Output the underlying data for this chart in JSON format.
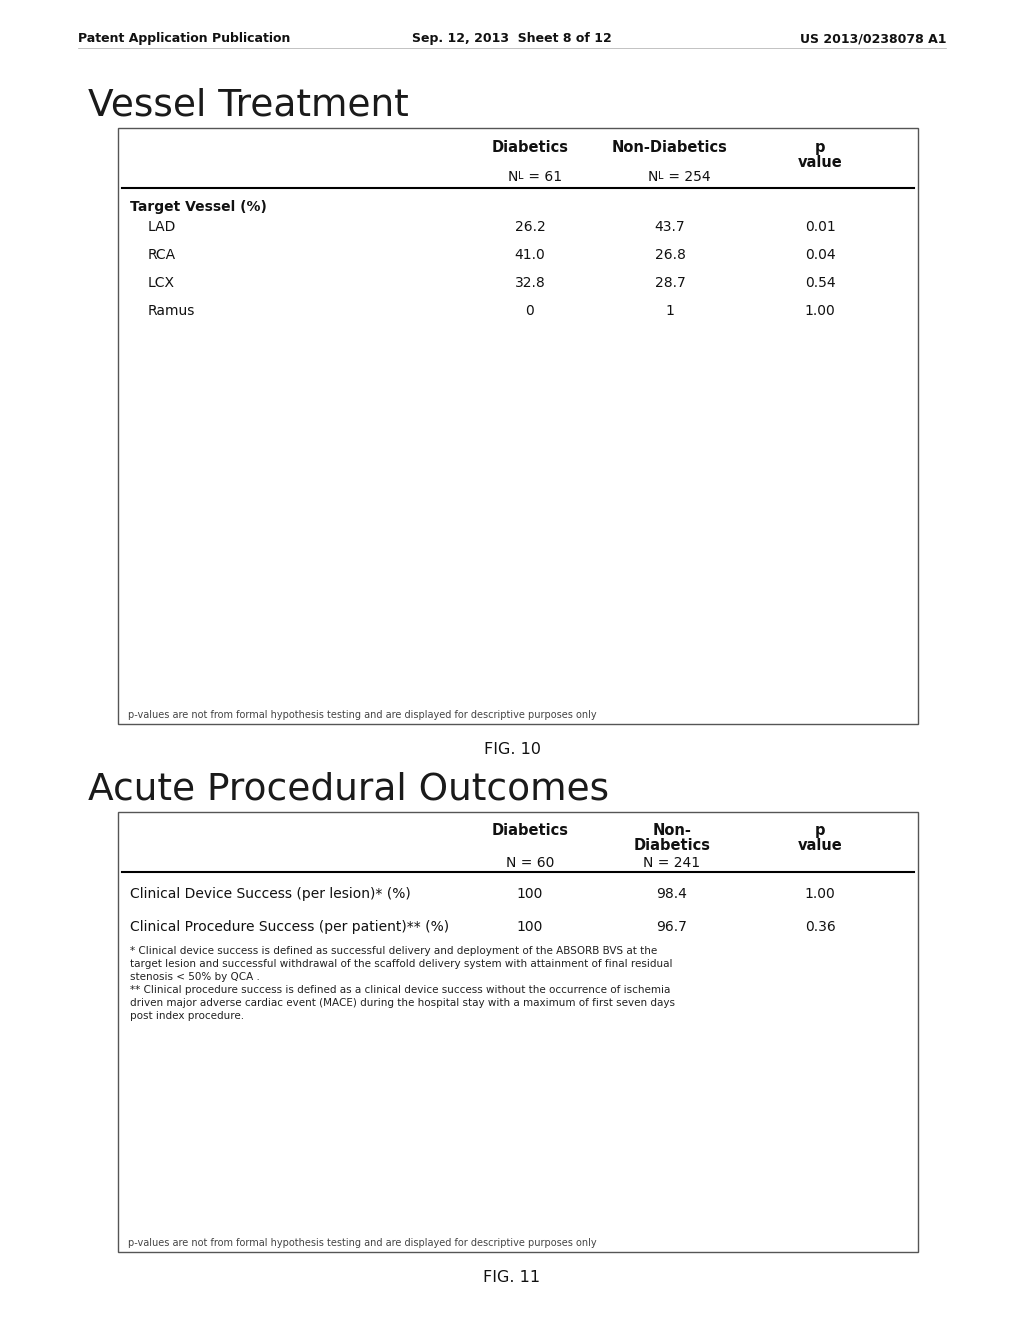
{
  "bg_color": "#ffffff",
  "header_line": {
    "left": "Patent Application Publication",
    "center": "Sep. 12, 2013  Sheet 8 of 12",
    "right": "US 2013/0238078 A1"
  },
  "fig10": {
    "title": "Vessel Treatment",
    "col_headers_1": [
      "Diabetics",
      "Non-Diabetics",
      "p"
    ],
    "col_headers_2": [
      "",
      "",
      "value"
    ],
    "col_subheaders": [
      "N_L = 61",
      "N_L = 254",
      ""
    ],
    "section_label": "Target Vessel (%)",
    "rows": [
      [
        "LAD",
        "26.2",
        "43.7",
        "0.01"
      ],
      [
        "RCA",
        "41.0",
        "26.8",
        "0.04"
      ],
      [
        "LCX",
        "32.8",
        "28.7",
        "0.54"
      ],
      [
        "Ramus",
        "0",
        "1",
        "1.00"
      ]
    ],
    "footnote": "p-values are not from formal hypothesis testing and are displayed for descriptive purposes only",
    "fig_label": "FIG. 10"
  },
  "fig11": {
    "title": "Acute Procedural Outcomes",
    "col_headers_1": [
      "Diabetics",
      "Non-",
      "p"
    ],
    "col_headers_2": [
      "",
      "Diabetics",
      "value"
    ],
    "col_subheaders": [
      "N = 60",
      "N = 241",
      ""
    ],
    "rows": [
      [
        "Clinical Device Success (per lesion)* (%)",
        "100",
        "98.4",
        "1.00"
      ],
      [
        "Clinical Procedure Success (per patient)** (%)",
        "100",
        "96.7",
        "0.36"
      ]
    ],
    "footnotes_body": [
      "* Clinical device success is defined as successful delivery and deployment of the ABSORB BVS at the",
      "target lesion and successful withdrawal of the scaffold delivery system with attainment of final residual",
      "stenosis < 50% by QCA .",
      "** Clinical procedure success is defined as a clinical device success without the occurrence of ischemia",
      "driven major adverse cardiac event (MACE) during the hospital stay with a maximum of first seven days",
      "post index procedure."
    ],
    "footnote": "p-values are not from formal hypothesis testing and are displayed for descriptive purposes only",
    "fig_label": "FIG. 11"
  }
}
